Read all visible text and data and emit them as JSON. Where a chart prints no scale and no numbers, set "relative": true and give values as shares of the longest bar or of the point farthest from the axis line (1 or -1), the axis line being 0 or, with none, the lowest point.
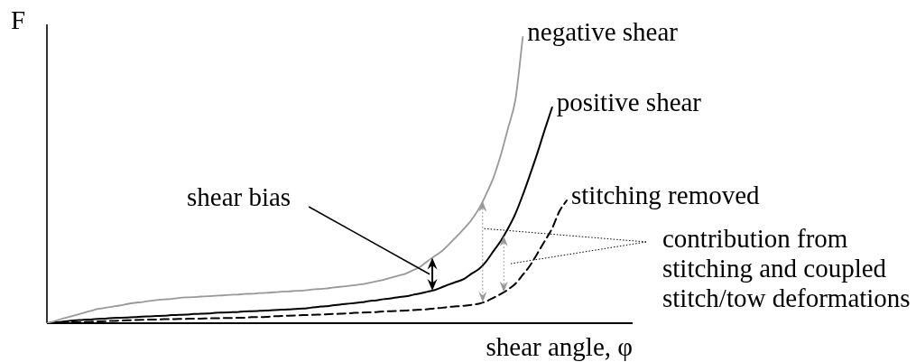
{
  "chart_data": {
    "type": "line",
    "relative": true,
    "ylabel": "F",
    "xlabel": "shear angle, φ",
    "categories": [
      null,
      null,
      null,
      null,
      null,
      null,
      null,
      null,
      null,
      null,
      null,
      null,
      null,
      null,
      null,
      null,
      null,
      null,
      null,
      null,
      null,
      null,
      null,
      null,
      null,
      null,
      null,
      null,
      null,
      null,
      null,
      null,
      null,
      null,
      null,
      null,
      null,
      null,
      null,
      null,
      null,
      null,
      null,
      null,
      null,
      null,
      null,
      null,
      null,
      null,
      null,
      null,
      null,
      null,
      null,
      null,
      null,
      null,
      null,
      null,
      null,
      null,
      null,
      null,
      null,
      null,
      null,
      null,
      null,
      null,
      null,
      null,
      null,
      null,
      null,
      null,
      null,
      null,
      null,
      null,
      null
    ],
    "series": [
      {
        "name": "negative shear",
        "color": "#999999",
        "values": [
          0,
          0.007,
          0.015,
          0.022,
          0.029,
          0.036,
          0.043,
          0.05,
          0.054,
          0.058,
          0.062,
          0.067,
          0.071,
          0.074,
          0.078,
          0.081,
          0.083,
          0.085,
          0.088,
          0.09,
          0.091,
          0.093,
          0.094,
          0.096,
          0.097,
          0.099,
          0.1,
          0.102,
          0.103,
          0.105,
          0.106,
          0.108,
          0.11,
          0.111,
          0.113,
          0.114,
          0.117,
          0.119,
          0.121,
          0.124,
          0.127,
          0.13,
          0.133,
          0.136,
          0.141,
          0.146,
          0.152,
          0.159,
          0.166,
          0.173,
          0.185,
          0.197,
          0.217,
          0.235,
          0.253,
          0.278,
          0.304,
          0.331,
          0.361,
          0.4,
          0.451,
          0.509,
          0.588,
          0.683,
          0.783,
          1,
          null,
          null,
          null,
          null,
          null,
          null,
          null,
          null,
          null,
          null,
          null,
          null,
          null,
          null,
          null
        ]
      },
      {
        "name": "positive shear",
        "color": "#000000",
        "values": [
          0,
          0.003,
          0.005,
          0.008,
          0.01,
          0.012,
          0.013,
          0.015,
          0.016,
          0.018,
          0.019,
          0.02,
          0.021,
          0.023,
          0.024,
          0.025,
          0.026,
          0.028,
          0.029,
          0.03,
          0.032,
          0.033,
          0.034,
          0.036,
          0.037,
          0.038,
          0.039,
          0.041,
          0.042,
          0.043,
          0.044,
          0.046,
          0.047,
          0.048,
          0.05,
          0.051,
          0.054,
          0.057,
          0.059,
          0.062,
          0.065,
          0.068,
          0.07,
          0.073,
          0.077,
          0.08,
          0.084,
          0.087,
          0.091,
          0.094,
          0.099,
          0.104,
          0.11,
          0.116,
          0.126,
          0.136,
          0.145,
          0.155,
          0.173,
          0.189,
          0.216,
          0.252,
          0.288,
          0.332,
          0.383,
          0.448,
          0.52,
          0.595,
          0.676,
          0.754,
          null,
          null,
          null,
          null,
          null,
          null,
          null,
          null,
          null,
          null,
          null
        ]
      },
      {
        "name": "stitching removed",
        "color": "#000000",
        "line_style": "dashed",
        "values": [
          0,
          0.001,
          0.002,
          0.003,
          0.003,
          0.004,
          0.005,
          0.006,
          0.007,
          0.008,
          0.009,
          0.01,
          0.011,
          0.012,
          0.013,
          0.013,
          0.014,
          0.014,
          0.015,
          0.015,
          0.016,
          0.016,
          0.017,
          0.017,
          0.018,
          0.018,
          0.019,
          0.019,
          0.021,
          0.021,
          0.022,
          0.024,
          0.025,
          0.026,
          0.027,
          0.028,
          0.029,
          0.03,
          0.031,
          0.032,
          0.033,
          0.034,
          0.036,
          0.037,
          0.038,
          0.039,
          0.041,
          0.042,
          0.043,
          0.044,
          0.046,
          0.047,
          0.049,
          0.052,
          0.054,
          0.057,
          0.059,
          0.061,
          0.064,
          0.068,
          0.076,
          0.089,
          0.102,
          0.118,
          0.138,
          0.169,
          0.202,
          0.244,
          0.287,
          0.331,
          0.391,
          0.429,
          null,
          null,
          null,
          null,
          null,
          null,
          null,
          null,
          null
        ]
      }
    ],
    "annotations": [
      "shear bias",
      "contribution from stitching and coupled stitch/tow deformations"
    ]
  }
}
